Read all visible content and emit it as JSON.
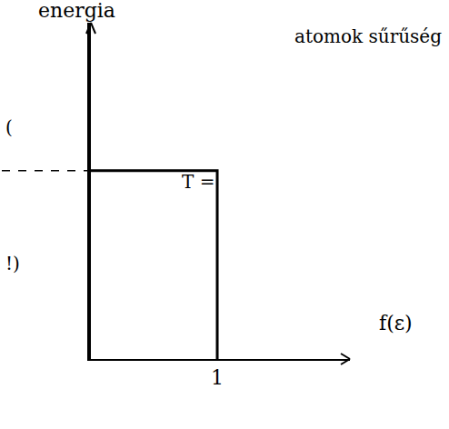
{
  "chart_data": {
    "type": "line",
    "y_label": "energia",
    "x_label": "f(ε)",
    "x": [
      0,
      1,
      1
    ],
    "values": [
      0.56,
      0.56,
      0
    ],
    "color": "#000000",
    "xlim": [
      0,
      2.05
    ],
    "xticks": [
      1
    ],
    "ylim": [
      0,
      1
    ],
    "yticks": [],
    "tick_labels": "x",
    "grid": false,
    "line_style": "solid",
    "annotations": [
      "atomok sűrűség",
      "T =",
      "(",
      "!)"
    ]
  }
}
